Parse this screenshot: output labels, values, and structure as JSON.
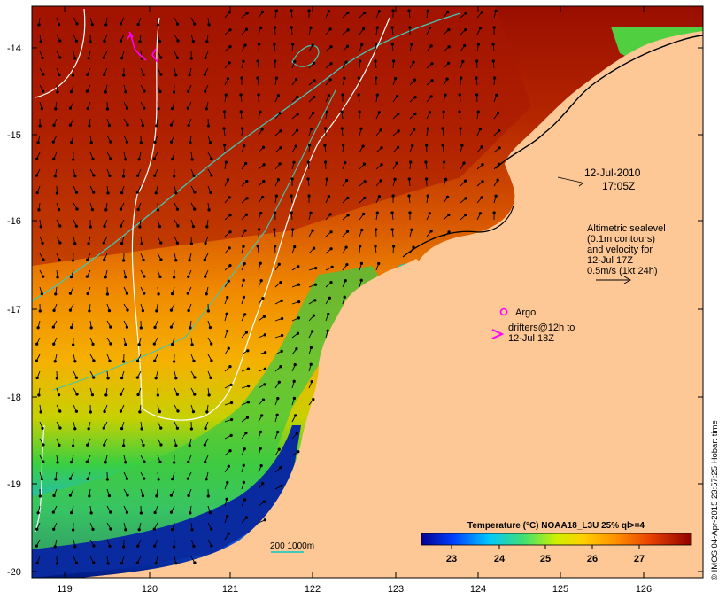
{
  "map": {
    "lat_labels": [
      "-14",
      "-15",
      "-16",
      "-17",
      "-18",
      "-19",
      "-20"
    ],
    "lon_labels": [
      "119",
      "120",
      "121",
      "122",
      "123",
      "124",
      "125",
      "126"
    ]
  },
  "annotations": {
    "date": "12-Jul-2010",
    "time": "17:05Z",
    "altimetry_lines": [
      "Altimetric sealevel",
      "(0.1m contours)",
      "and velocity for",
      "12-Jul 17Z",
      "0.5m/s (1kt 24h)"
    ],
    "argo_label": "Argo",
    "drifter_lines": [
      "drifters@12h to",
      "12-Jul 18Z"
    ],
    "bathymetry_label": "200  1000m"
  },
  "colorbar": {
    "title": "Temperature (°C) NOAA18_L3U 25% ql>=4",
    "ticks": [
      "23",
      "24",
      "25",
      "26",
      "27"
    ]
  },
  "credit": "© IMOS 04-Apr-2015 23:57:25 Hobart time",
  "colors": {
    "land": "#fdc896",
    "warm": "#a81500",
    "mid": "#f08a00",
    "cool": "#3ad040",
    "cold": "#0033a8",
    "drifter": "#ff00ff",
    "bathymetry": "#40c8b8",
    "sealevel_contour": "#ffffff"
  }
}
